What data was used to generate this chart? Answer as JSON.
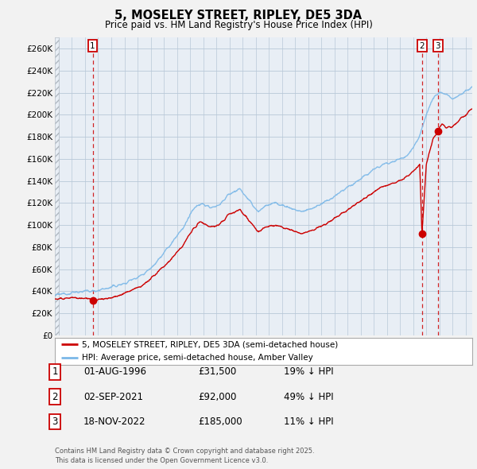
{
  "title": "5, MOSELEY STREET, RIPLEY, DE5 3DA",
  "subtitle": "Price paid vs. HM Land Registry's House Price Index (HPI)",
  "ylim": [
    0,
    270000
  ],
  "yticks": [
    0,
    20000,
    40000,
    60000,
    80000,
    100000,
    120000,
    140000,
    160000,
    180000,
    200000,
    220000,
    240000,
    260000
  ],
  "xlim_start": 1993.7,
  "xlim_end": 2025.5,
  "hpi_color": "#7bb8e8",
  "price_color": "#cc0000",
  "sale_marker_color": "#cc0000",
  "dashed_line_color": "#cc0000",
  "background_color": "#f2f2f2",
  "plot_bg_color": "#e8eef5",
  "grid_color": "#b8c8d8",
  "legend_label_price": "5, MOSELEY STREET, RIPLEY, DE5 3DA (semi-detached house)",
  "legend_label_hpi": "HPI: Average price, semi-detached house, Amber Valley",
  "sale1_date": 1996.58,
  "sale1_price": 31500,
  "sale1_label": "1",
  "sale2_date": 2021.67,
  "sale2_price": 92000,
  "sale2_label": "2",
  "sale3_date": 2022.88,
  "sale3_price": 185000,
  "sale3_label": "3",
  "table_rows": [
    {
      "num": "1",
      "date": "01-AUG-1996",
      "price": "£31,500",
      "hpi": "19% ↓ HPI"
    },
    {
      "num": "2",
      "date": "02-SEP-2021",
      "price": "£92,000",
      "hpi": "49% ↓ HPI"
    },
    {
      "num": "3",
      "date": "18-NOV-2022",
      "price": "£185,000",
      "hpi": "11% ↓ HPI"
    }
  ],
  "footnote": "Contains HM Land Registry data © Crown copyright and database right 2025.\nThis data is licensed under the Open Government Licence v3.0.",
  "hpi_anchors": [
    [
      1993.7,
      36000
    ],
    [
      1994.5,
      38000
    ],
    [
      1995.5,
      39500
    ],
    [
      1996.5,
      40000
    ],
    [
      1997.5,
      42000
    ],
    [
      1999.0,
      47000
    ],
    [
      2000.5,
      56000
    ],
    [
      2001.5,
      67000
    ],
    [
      2002.5,
      82000
    ],
    [
      2003.5,
      98000
    ],
    [
      2004.2,
      113000
    ],
    [
      2004.8,
      120000
    ],
    [
      2005.5,
      116000
    ],
    [
      2006.2,
      118000
    ],
    [
      2007.0,
      128000
    ],
    [
      2007.8,
      133000
    ],
    [
      2008.5,
      122000
    ],
    [
      2009.2,
      112000
    ],
    [
      2009.8,
      118000
    ],
    [
      2010.5,
      120000
    ],
    [
      2011.5,
      116000
    ],
    [
      2012.5,
      112000
    ],
    [
      2013.5,
      116000
    ],
    [
      2014.5,
      122000
    ],
    [
      2015.5,
      130000
    ],
    [
      2016.5,
      138000
    ],
    [
      2017.5,
      146000
    ],
    [
      2018.5,
      154000
    ],
    [
      2019.5,
      158000
    ],
    [
      2020.5,
      162000
    ],
    [
      2021.0,
      170000
    ],
    [
      2021.5,
      182000
    ],
    [
      2022.0,
      200000
    ],
    [
      2022.5,
      215000
    ],
    [
      2023.0,
      220000
    ],
    [
      2023.5,
      218000
    ],
    [
      2024.0,
      215000
    ],
    [
      2024.5,
      218000
    ],
    [
      2025.0,
      222000
    ],
    [
      2025.5,
      225000
    ]
  ],
  "price_anchors": [
    [
      1993.7,
      33000
    ],
    [
      1994.5,
      34000
    ],
    [
      1995.5,
      33500
    ],
    [
      1996.0,
      33000
    ],
    [
      1996.58,
      31500
    ],
    [
      1997.0,
      32500
    ],
    [
      1998.0,
      34000
    ],
    [
      1999.0,
      38000
    ],
    [
      2000.5,
      46000
    ],
    [
      2001.5,
      57000
    ],
    [
      2002.5,
      68000
    ],
    [
      2003.5,
      82000
    ],
    [
      2004.2,
      96000
    ],
    [
      2004.8,
      103000
    ],
    [
      2005.5,
      98000
    ],
    [
      2006.2,
      100000
    ],
    [
      2007.0,
      110000
    ],
    [
      2007.8,
      114000
    ],
    [
      2008.5,
      104000
    ],
    [
      2009.2,
      94000
    ],
    [
      2009.8,
      98000
    ],
    [
      2010.5,
      100000
    ],
    [
      2011.5,
      96000
    ],
    [
      2012.5,
      92000
    ],
    [
      2013.5,
      96000
    ],
    [
      2014.5,
      102000
    ],
    [
      2015.5,
      110000
    ],
    [
      2016.5,
      118000
    ],
    [
      2017.5,
      126000
    ],
    [
      2018.5,
      134000
    ],
    [
      2019.5,
      138000
    ],
    [
      2020.3,
      142000
    ],
    [
      2021.0,
      148000
    ],
    [
      2021.5,
      155000
    ],
    [
      2021.67,
      92000
    ],
    [
      2022.0,
      155000
    ],
    [
      2022.5,
      178000
    ],
    [
      2022.88,
      185000
    ],
    [
      2023.2,
      192000
    ],
    [
      2023.5,
      188000
    ],
    [
      2024.0,
      190000
    ],
    [
      2024.5,
      195000
    ],
    [
      2025.0,
      200000
    ],
    [
      2025.5,
      205000
    ]
  ]
}
